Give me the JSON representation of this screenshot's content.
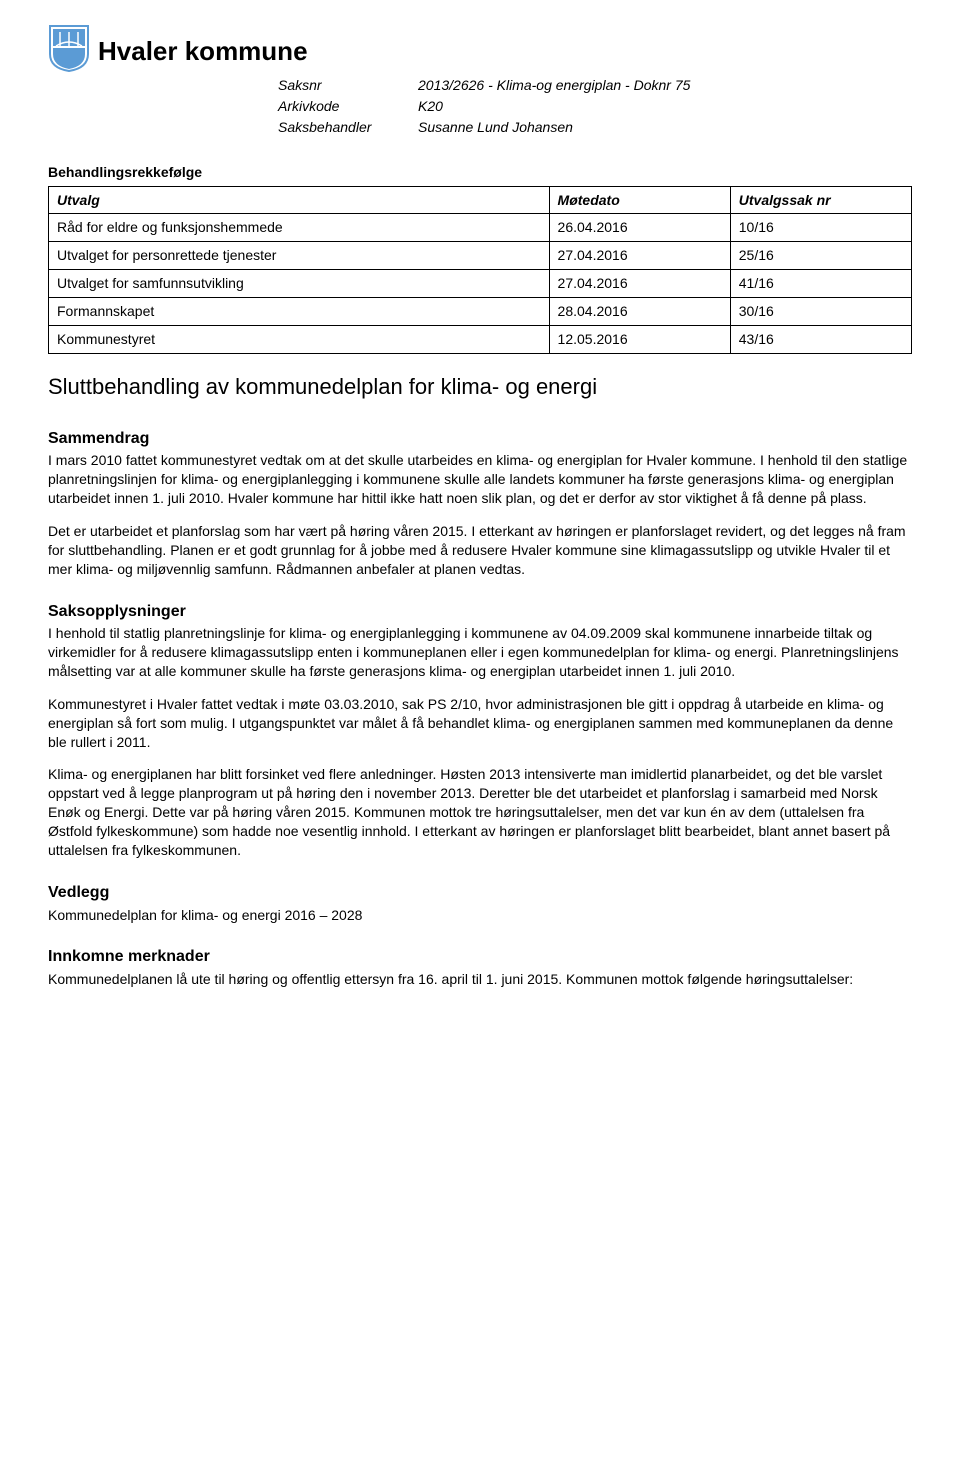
{
  "header": {
    "org_name": "Hvaler kommune",
    "logo_colors": {
      "stroke": "#5b9bd5",
      "fill_top": "#5b9bd5",
      "fill_bottom": "#5b9bd5"
    }
  },
  "meta": {
    "saksnr_label": "Saksnr",
    "saksnr_value": "2013/2626 - Klima-og energiplan - Doknr 75",
    "arkivkode_label": "Arkivkode",
    "arkivkode_value": "K20",
    "saksbehandler_label": "Saksbehandler",
    "saksbehandler_value": "Susanne Lund Johansen"
  },
  "behandling": {
    "caption": "Behandlingsrekkefølge",
    "columns": [
      "Utvalg",
      "Møtedato",
      "Utvalgssak nr"
    ],
    "rows": [
      [
        "Råd for eldre og funksjonshemmede",
        "26.04.2016",
        "10/16"
      ],
      [
        "Utvalget for personrettede tjenester",
        "27.04.2016",
        "25/16"
      ],
      [
        "Utvalget for samfunnsutvikling",
        "27.04.2016",
        "41/16"
      ],
      [
        "Formannskapet",
        "28.04.2016",
        "30/16"
      ],
      [
        "Kommunestyret",
        "12.05.2016",
        "43/16"
      ]
    ],
    "col_widths": [
      "58%",
      "21%",
      "21%"
    ]
  },
  "document_title": "Sluttbehandling av kommunedelplan for klima- og energi",
  "sammendrag": {
    "heading": "Sammendrag",
    "p1": "I mars 2010 fattet kommunestyret vedtak om at det skulle utarbeides en klima- og energiplan for Hvaler kommune. I henhold til den statlige planretningslinjen for klima- og energiplanlegging i kommunene skulle alle landets kommuner ha første generasjons klima- og energiplan utarbeidet innen 1. juli 2010. Hvaler kommune har hittil ikke hatt noen slik plan, og det er derfor av stor viktighet å få denne på plass.",
    "p2": "Det er utarbeidet et planforslag som har vært på høring våren 2015. I etterkant av høringen er planforslaget revidert, og det legges nå fram for sluttbehandling. Planen er et godt grunnlag for å jobbe med å redusere Hvaler kommune sine klimagassutslipp og utvikle Hvaler til et mer klima- og miljøvennlig samfunn. Rådmannen anbefaler at planen vedtas."
  },
  "saksopplysninger": {
    "heading": "Saksopplysninger",
    "p1": "I henhold til statlig planretningslinje for klima- og energiplanlegging i kommunene av 04.09.2009 skal kommunene innarbeide tiltak og virkemidler for å redusere klimagassutslipp enten i kommuneplanen eller i egen kommunedelplan for klima- og energi. Planretningslinjens målsetting var at alle kommuner skulle ha første generasjons klima- og energiplan utarbeidet innen 1. juli 2010.",
    "p2": "Kommunestyret i Hvaler fattet vedtak i møte 03.03.2010, sak PS 2/10, hvor administrasjonen ble gitt i oppdrag å utarbeide en klima- og energiplan så fort som mulig. I utgangspunktet var målet å få behandlet klima- og energiplanen sammen med kommuneplanen da denne ble rullert i 2011.",
    "p3": "Klima- og energiplanen har blitt forsinket ved flere anledninger. Høsten 2013 intensiverte man imidlertid planarbeidet, og det ble varslet oppstart ved å legge planprogram ut på høring den i november 2013. Deretter ble det utarbeidet et planforslag i samarbeid med Norsk Enøk og Energi. Dette var på høring våren 2015. Kommunen mottok tre høringsuttalelser, men det var kun én av dem (uttalelsen fra Østfold fylkeskommune) som hadde noe vesentlig innhold. I etterkant av høringen er planforslaget blitt bearbeidet, blant annet basert på uttalelsen fra fylkeskommunen."
  },
  "vedlegg": {
    "heading": "Vedlegg",
    "p1": "Kommunedelplan for klima- og energi 2016 – 2028"
  },
  "innkomne": {
    "heading": "Innkomne merknader",
    "p1": "Kommunedelplanen lå ute til høring og offentlig ettersyn fra 16. april til 1. juni 2015. Kommunen mottok følgende høringsuttalelser:"
  }
}
